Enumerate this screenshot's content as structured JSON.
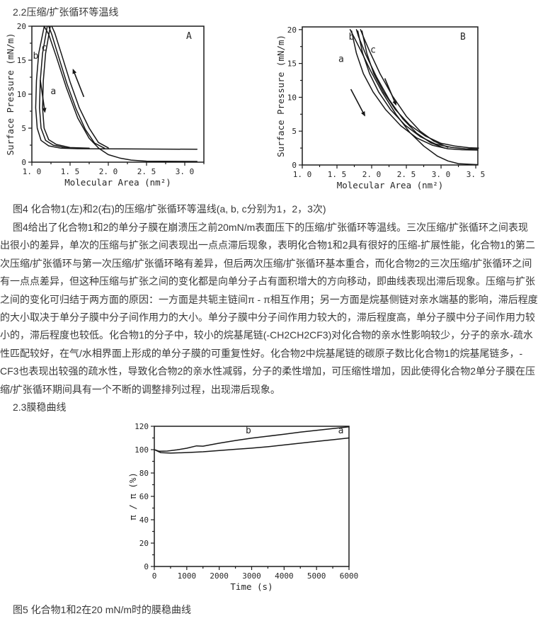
{
  "page": {
    "heading_2_2": "2.2压缩/扩张循环等温线",
    "fig4_caption": "图4 化合物1(左)和2(右)的压缩/扩张循环等温线(a, b, c分别为1，2，3次)",
    "paragraph_lines": [
      "图4给出了化合物1和2的单分子膜在崩溃压之前20mN/m表面压下的压缩/扩张循环等温线。三次压缩/扩张循环之间表现",
      "出很小的差异，单次的压缩与扩张之间表现出一点点滞后现象，表明化合物1和2具有很好的压缩-扩展性能，化合物1的第二",
      "次压缩/扩张循环与第一次压缩/扩张循环略有差异，但后两次压缩/扩张循环基本重合，而化合物2的三次压缩/扩张循环之间",
      "有一点点差异，但这种压缩与扩张之间的变化都是向单分子占有面积增大的方向移动，即曲线表现出滞后现象。压缩与扩张",
      "之间的变化可归结于两方面的原因：一方面是共轭主链间π - π相互作用；另一方面是烷基侧链对亲水端基的影响，滞后程度",
      "的大小取决于单分子膜中分子间作用力的大小。单分子膜中分子间作用力较大的，滞后程度高，单分子膜中分子间作用力较",
      "小的，滞后程度也较低。化合物1的分子中，较小的烷基尾链(-CH2CH2CF3)对化合物的亲水性影响较少，分子的亲水-疏水",
      "性匹配较好，在气/水相界面上形成的单分子膜的可重复性好。化合物2中烷基尾链的碳原子数比化合物1的烷基尾链多，-",
      "CF3也表现出较强的疏水性，导致化合物2的亲水性减弱，分子的柔性增加，可压缩性增加，因此使得化合物2单分子膜在压",
      "缩/扩张循环期间具有一个不断的调整排列过程，出现滞后现象。"
    ],
    "heading_2_3": "2.3膜稳曲线",
    "fig5_caption": "图5 化合物1和2在20 mN/m时的膜稳曲线"
  },
  "colors": {
    "text": "#3a3a3a",
    "chart_stroke": "#171717",
    "background": "#ffffff"
  },
  "chart_data": [
    {
      "id": "figA",
      "type": "line",
      "panel_label": "A",
      "xlabel": "Molecular Area (nm²)",
      "ylabel": "Surface Pressure (mN/m)",
      "xlim": [
        1.0,
        3.25
      ],
      "ylim": [
        0,
        20
      ],
      "xticks": [
        1.0,
        1.5,
        2.0,
        2.5,
        3.0
      ],
      "xtick_labels": [
        "1. 0",
        "1. 5",
        "2. 0",
        "2. 5",
        "3. 0"
      ],
      "yticks": [
        0,
        5,
        10,
        15,
        20
      ],
      "ytick_labels": [
        "0",
        "5",
        "10",
        "15",
        "20"
      ],
      "xminor_step": 0.25,
      "yminor_step": 2.5,
      "series": [
        {
          "name": "cycle1-compression",
          "points": [
            [
              3.16,
              0.1
            ],
            [
              2.5,
              0.15
            ],
            [
              2.3,
              0.3
            ],
            [
              2.15,
              0.6
            ],
            [
              2.0,
              1.1
            ],
            [
              1.88,
              2.0
            ],
            [
              1.75,
              3.5
            ],
            [
              1.6,
              6.5
            ],
            [
              1.45,
              11
            ],
            [
              1.32,
              15.5
            ],
            [
              1.22,
              18.8
            ],
            [
              1.16,
              20
            ]
          ]
        },
        {
          "name": "cycle1-expansion",
          "points": [
            [
              1.16,
              19.9
            ],
            [
              1.09,
              16
            ],
            [
              1.06,
              12
            ],
            [
              1.05,
              8
            ],
            [
              1.07,
              5
            ],
            [
              1.12,
              3.2
            ],
            [
              1.22,
              2.4
            ],
            [
              1.38,
              2.05
            ],
            [
              1.6,
              1.98
            ],
            [
              2.2,
              1.95
            ],
            [
              3.16,
              1.9
            ]
          ]
        },
        {
          "name": "cycle2-compression",
          "points": [
            [
              1.95,
              2.05
            ],
            [
              1.82,
              2.8
            ],
            [
              1.7,
              4.8
            ],
            [
              1.58,
              7.8
            ],
            [
              1.46,
              11.5
            ],
            [
              1.35,
              15.5
            ],
            [
              1.26,
              18.8
            ],
            [
              1.22,
              20
            ]
          ]
        },
        {
          "name": "cycle2-expansion",
          "points": [
            [
              1.2,
              19.9
            ],
            [
              1.14,
              16
            ],
            [
              1.11,
              12
            ],
            [
              1.1,
              8
            ],
            [
              1.12,
              5
            ],
            [
              1.18,
              3.2
            ],
            [
              1.28,
              2.5
            ],
            [
              1.45,
              2.1
            ],
            [
              1.7,
              2.0
            ]
          ]
        },
        {
          "name": "cycle3-compression",
          "points": [
            [
              2.0,
              2.1
            ],
            [
              1.87,
              2.9
            ],
            [
              1.75,
              5
            ],
            [
              1.62,
              8
            ],
            [
              1.5,
              11.8
            ],
            [
              1.39,
              15.8
            ],
            [
              1.3,
              19
            ],
            [
              1.26,
              20
            ]
          ]
        },
        {
          "name": "cycle3-expansion",
          "points": [
            [
              1.24,
              19.9
            ],
            [
              1.18,
              16
            ],
            [
              1.15,
              12
            ],
            [
              1.14,
              8
            ],
            [
              1.16,
              5
            ],
            [
              1.22,
              3.3
            ],
            [
              1.32,
              2.6
            ],
            [
              1.5,
              2.15
            ],
            [
              1.75,
              2.05
            ]
          ]
        }
      ],
      "curve_labels": [
        {
          "text": "b",
          "x": 1.05,
          "y": 15.2
        },
        {
          "text": "c",
          "x": 1.16,
          "y": 16.4
        },
        {
          "text": "a",
          "x": 1.28,
          "y": 10.0
        }
      ],
      "arrows": [
        {
          "x1": 1.11,
          "y1": 12.1,
          "x2": 1.17,
          "y2": 7.4
        },
        {
          "x1": 1.68,
          "y1": 9.6,
          "x2": 1.54,
          "y2": 13.6
        }
      ]
    },
    {
      "id": "figB",
      "type": "line",
      "panel_label": "B",
      "xlabel": "Molecular Area (nm²)",
      "ylabel": "Surface Pressure (mN/m)",
      "xlim": [
        1.0,
        3.53
      ],
      "ylim": [
        0,
        20.4
      ],
      "xticks": [
        1.0,
        1.5,
        2.0,
        2.5,
        3.0,
        3.5
      ],
      "xtick_labels": [
        "1. 0",
        "1. 5",
        "2. 0",
        "2. 5",
        "3. 0",
        "3. 5"
      ],
      "yticks": [
        0,
        5,
        10,
        15,
        20
      ],
      "ytick_labels": [
        "0",
        "5",
        "10",
        "15",
        "20"
      ],
      "xminor_step": 0.25,
      "yminor_step": 2.5,
      "series": [
        {
          "name": "cycle1-compression",
          "points": [
            [
              3.52,
              0.05
            ],
            [
              3.25,
              0.2
            ],
            [
              3.1,
              0.6
            ],
            [
              2.95,
              1.3
            ],
            [
              2.75,
              2.8
            ],
            [
              2.55,
              4.8
            ],
            [
              2.35,
              7.5
            ],
            [
              2.15,
              10.8
            ],
            [
              1.98,
              14
            ],
            [
              1.84,
              17
            ],
            [
              1.73,
              19.2
            ],
            [
              1.69,
              20
            ]
          ]
        },
        {
          "name": "cycle1-expansion",
          "points": [
            [
              1.71,
              19.8
            ],
            [
              1.78,
              16.5
            ],
            [
              1.88,
              13.5
            ],
            [
              2.02,
              10.8
            ],
            [
              2.2,
              8.2
            ],
            [
              2.42,
              5.8
            ],
            [
              2.65,
              4.0
            ],
            [
              2.88,
              2.9
            ],
            [
              3.1,
              2.4
            ],
            [
              3.3,
              2.25
            ],
            [
              3.53,
              2.2
            ]
          ]
        },
        {
          "name": "cycle2-compression",
          "points": [
            [
              3.05,
              2.5
            ],
            [
              2.85,
              3.3
            ],
            [
              2.65,
              4.7
            ],
            [
              2.45,
              6.8
            ],
            [
              2.25,
              9.7
            ],
            [
              2.07,
              13
            ],
            [
              1.92,
              16.2
            ],
            [
              1.81,
              19
            ],
            [
              1.78,
              20
            ]
          ]
        },
        {
          "name": "cycle2-expansion",
          "points": [
            [
              1.8,
              19.8
            ],
            [
              1.87,
              16.5
            ],
            [
              1.97,
              13.5
            ],
            [
              2.1,
              10.8
            ],
            [
              2.27,
              8.2
            ],
            [
              2.48,
              5.9
            ],
            [
              2.7,
              4.2
            ],
            [
              2.92,
              3.1
            ],
            [
              3.15,
              2.6
            ],
            [
              3.35,
              2.4
            ],
            [
              3.53,
              2.35
            ]
          ]
        },
        {
          "name": "cycle3-compression",
          "points": [
            [
              3.1,
              2.6
            ],
            [
              2.9,
              3.5
            ],
            [
              2.7,
              5
            ],
            [
              2.5,
              7.2
            ],
            [
              2.3,
              10.2
            ],
            [
              2.12,
              13.5
            ],
            [
              1.97,
              16.8
            ],
            [
              1.87,
              19.2
            ],
            [
              1.84,
              20
            ]
          ]
        },
        {
          "name": "cycle3-expansion",
          "points": [
            [
              1.86,
              19.8
            ],
            [
              1.93,
              16.5
            ],
            [
              2.03,
              13.5
            ],
            [
              2.17,
              10.8
            ],
            [
              2.34,
              8.2
            ],
            [
              2.55,
              5.9
            ],
            [
              2.77,
              4.3
            ],
            [
              3.0,
              3.2
            ],
            [
              3.2,
              2.8
            ],
            [
              3.4,
              2.55
            ],
            [
              3.54,
              2.5
            ]
          ]
        }
      ],
      "curve_labels": [
        {
          "text": "a",
          "x": 1.56,
          "y": 15.2
        },
        {
          "text": "b",
          "x": 1.71,
          "y": 18.5
        },
        {
          "text": "c",
          "x": 2.02,
          "y": 16.6
        }
      ],
      "arrows": [
        {
          "x1": 1.7,
          "y1": 11.2,
          "x2": 1.9,
          "y2": 7.3
        },
        {
          "x1": 2.19,
          "y1": 12.8,
          "x2": 2.35,
          "y2": 8.9
        }
      ]
    },
    {
      "id": "fig5",
      "type": "line",
      "panel_label": "",
      "xlabel": "Time (s)",
      "ylabel": "π / π (%)",
      "xlim": [
        0,
        6000
      ],
      "ylim": [
        0,
        120
      ],
      "xticks": [
        0,
        1000,
        2000,
        3000,
        4000,
        5000,
        6000
      ],
      "xtick_labels": [
        "0",
        "1000",
        "2000",
        "3000",
        "4000",
        "5000",
        "6000"
      ],
      "yticks": [
        0,
        20,
        40,
        60,
        80,
        100,
        120
      ],
      "ytick_labels": [
        "0",
        "20",
        "40",
        "60",
        "80",
        "100",
        "120"
      ],
      "xminor_step": 500,
      "yminor_step": 10,
      "series": [
        {
          "name": "compound2-b",
          "points": [
            [
              0,
              100
            ],
            [
              150,
              98.6
            ],
            [
              400,
              98.8
            ],
            [
              700,
              99.8
            ],
            [
              1000,
              101.2
            ],
            [
              1300,
              103.2
            ],
            [
              1500,
              103.0
            ],
            [
              2000,
              105.5
            ],
            [
              2500,
              107.8
            ],
            [
              3000,
              109.8
            ],
            [
              3500,
              111.5
            ],
            [
              4000,
              113.2
            ],
            [
              4500,
              115.0
            ],
            [
              5000,
              116.5
            ],
            [
              5500,
              118.0
            ],
            [
              6000,
              119.5
            ]
          ]
        },
        {
          "name": "compound1-a",
          "points": [
            [
              0,
              100
            ],
            [
              200,
              97.4
            ],
            [
              500,
              97.0
            ],
            [
              1000,
              97.5
            ],
            [
              1500,
              98.2
            ],
            [
              2000,
              99.3
            ],
            [
              2500,
              100.3
            ],
            [
              3000,
              101.3
            ],
            [
              3500,
              102.5
            ],
            [
              4000,
              104.0
            ],
            [
              4500,
              105.5
            ],
            [
              5000,
              107.0
            ],
            [
              5500,
              108.5
            ],
            [
              6000,
              110.0
            ]
          ]
        }
      ],
      "curve_labels": [
        {
          "text": "b",
          "x": 2900,
          "y": 114
        },
        {
          "text": "a",
          "x": 5750,
          "y": 114
        }
      ],
      "arrows": []
    }
  ]
}
